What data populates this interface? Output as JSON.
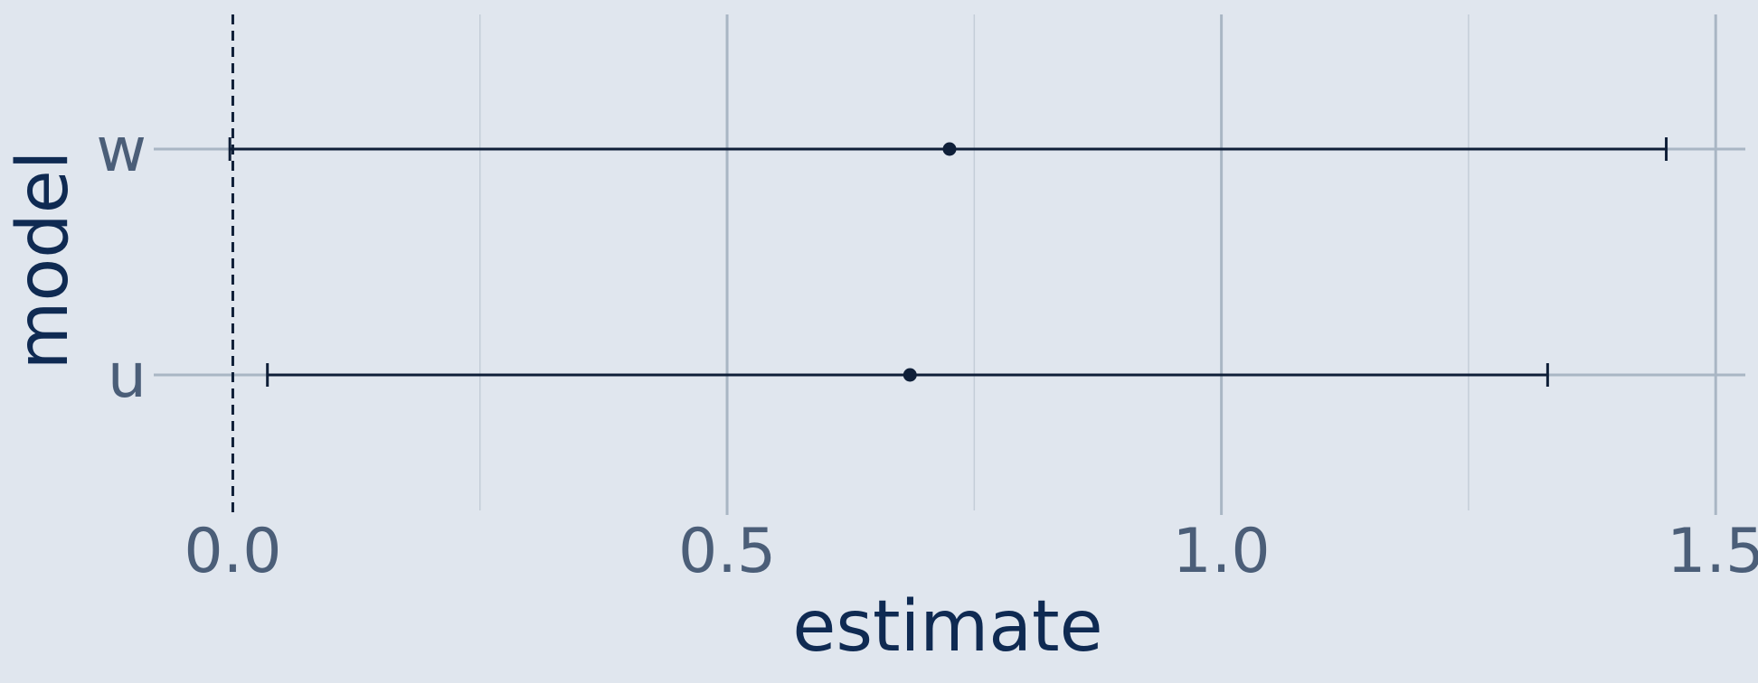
{
  "chart_data": {
    "type": "forest",
    "title": "",
    "xlabel": "estimate",
    "ylabel": "model",
    "xlim": [
      -0.08,
      1.53
    ],
    "x_ticks": [
      0.0,
      0.5,
      1.0,
      1.5
    ],
    "x_tick_labels": [
      "0.0",
      "0.5",
      "1.0",
      "1.5"
    ],
    "minor_gridlines": [
      0.25,
      0.75,
      1.25
    ],
    "reference_line": {
      "x": 0.0,
      "style": "dashed"
    },
    "categories": [
      "w",
      "u"
    ],
    "points": [
      {
        "model": "w",
        "estimate": 0.725,
        "lower": -0.003,
        "upper": 1.45
      },
      {
        "model": "u",
        "estimate": 0.685,
        "lower": 0.035,
        "upper": 1.33
      }
    ],
    "grid": true,
    "colors": {
      "background": "#e0e6ee",
      "major_grid": "#a9b6c4",
      "minor_grid": "#c4cdd8",
      "marks": "#0f1f38",
      "tick_text": "#4b5e78",
      "axis_title": "#0f2a52"
    }
  }
}
